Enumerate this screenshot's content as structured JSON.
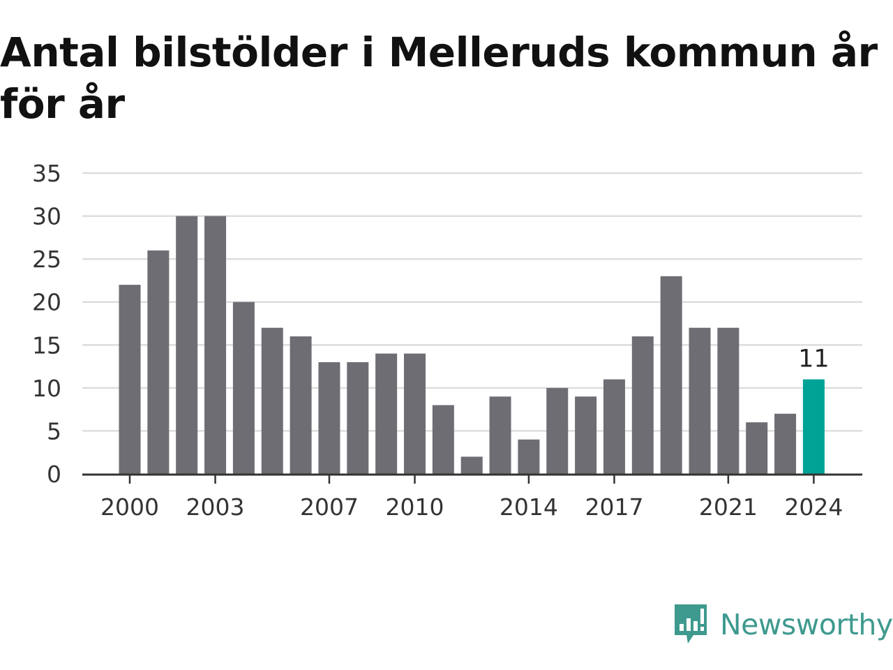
{
  "title": "Antal bilstölder i Melleruds kommun år för år",
  "brand": {
    "name": "Newsworthy",
    "icon": "newsworthy-logo-icon",
    "color": "#3e9a8e"
  },
  "colors": {
    "bar": "#6e6d73",
    "highlight": "#00a396",
    "grid": "#dddddd",
    "axis": "#333333"
  },
  "chart_data": {
    "type": "bar",
    "title": "Antal bilstölder i Melleruds kommun år för år",
    "xlabel": "",
    "ylabel": "",
    "categories": [
      "2000",
      "2001",
      "2002",
      "2003",
      "2004",
      "2005",
      "2006",
      "2007",
      "2008",
      "2009",
      "2010",
      "2011",
      "2012",
      "2013",
      "2014",
      "2015",
      "2016",
      "2017",
      "2018",
      "2019",
      "2020",
      "2021",
      "2022",
      "2023",
      "2024"
    ],
    "values": [
      22,
      26,
      30,
      30,
      20,
      17,
      16,
      13,
      13,
      14,
      14,
      8,
      2,
      9,
      4,
      10,
      9,
      11,
      16,
      23,
      17,
      17,
      6,
      7,
      11
    ],
    "ylim": [
      0,
      35
    ],
    "yticks": [
      0,
      5,
      10,
      15,
      20,
      25,
      30,
      35
    ],
    "xtick_labels": [
      "2000",
      "2003",
      "2007",
      "2010",
      "2014",
      "2017",
      "2021",
      "2024"
    ],
    "highlight": {
      "category": "2024",
      "label": "11"
    },
    "grid": true,
    "legend": "none"
  }
}
